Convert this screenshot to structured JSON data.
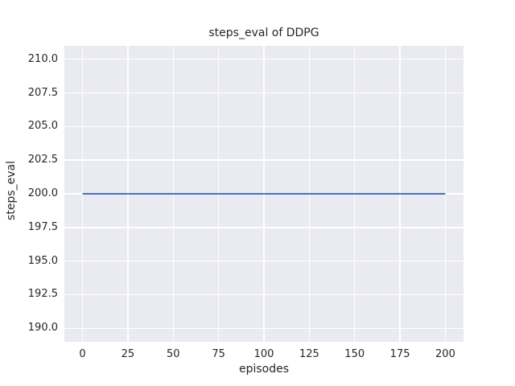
{
  "figure": {
    "background": "#ffffff"
  },
  "chart_data": {
    "type": "line",
    "title": "steps_eval of DDPG",
    "xlabel": "episodes",
    "ylabel": "steps_eval",
    "xlim": [
      -10,
      210
    ],
    "ylim": [
      189,
      211
    ],
    "xticks": [
      {
        "value": 0,
        "label": "0"
      },
      {
        "value": 25,
        "label": "25"
      },
      {
        "value": 50,
        "label": "50"
      },
      {
        "value": 75,
        "label": "75"
      },
      {
        "value": 100,
        "label": "100"
      },
      {
        "value": 125,
        "label": "125"
      },
      {
        "value": 150,
        "label": "150"
      },
      {
        "value": 175,
        "label": "175"
      },
      {
        "value": 200,
        "label": "200"
      }
    ],
    "yticks": [
      {
        "value": 190.0,
        "label": "190.0"
      },
      {
        "value": 192.5,
        "label": "192.5"
      },
      {
        "value": 195.0,
        "label": "195.0"
      },
      {
        "value": 197.5,
        "label": "197.5"
      },
      {
        "value": 200.0,
        "label": "200.0"
      },
      {
        "value": 202.5,
        "label": "202.5"
      },
      {
        "value": 205.0,
        "label": "205.0"
      },
      {
        "value": 207.5,
        "label": "207.5"
      },
      {
        "value": 210.0,
        "label": "210.0"
      }
    ],
    "grid": true,
    "series": [
      {
        "name": "DDPG",
        "x": [
          0,
          200
        ],
        "y": [
          200,
          200
        ]
      }
    ],
    "style": {
      "axes_background": "#eaeaf2",
      "grid_color": "#ffffff",
      "text_color": "#262626",
      "line_color": "#4c72b0",
      "line_width": 2
    }
  }
}
